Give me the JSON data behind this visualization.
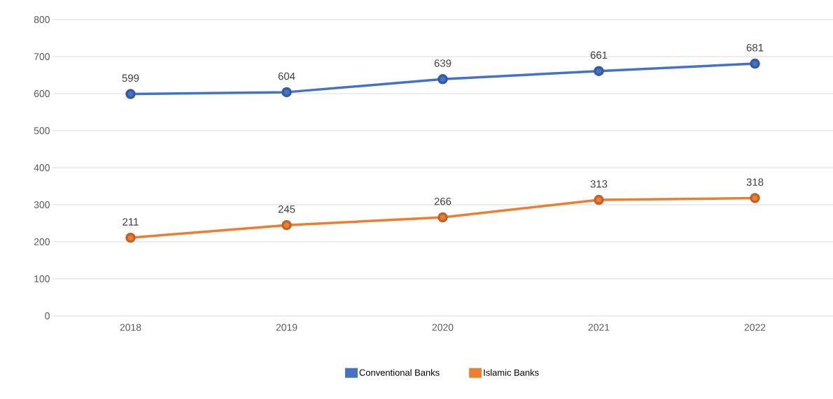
{
  "chart_data": {
    "type": "line",
    "categories": [
      "2018",
      "2019",
      "2020",
      "2021",
      "2022"
    ],
    "series": [
      {
        "name": "Conventional Banks",
        "color": "#4472c4",
        "values": [
          599,
          604,
          639,
          661,
          681
        ]
      },
      {
        "name": "Islamic Banks",
        "color": "#ed7d31",
        "values": [
          211,
          245,
          266,
          313,
          318
        ]
      }
    ],
    "ylim": [
      0,
      800
    ],
    "yticks": [
      0,
      100,
      200,
      300,
      400,
      500,
      600,
      700,
      800
    ],
    "grid": "y",
    "legend": "bottom",
    "marker": "circle",
    "line_style": "solid",
    "data_labels": true
  }
}
